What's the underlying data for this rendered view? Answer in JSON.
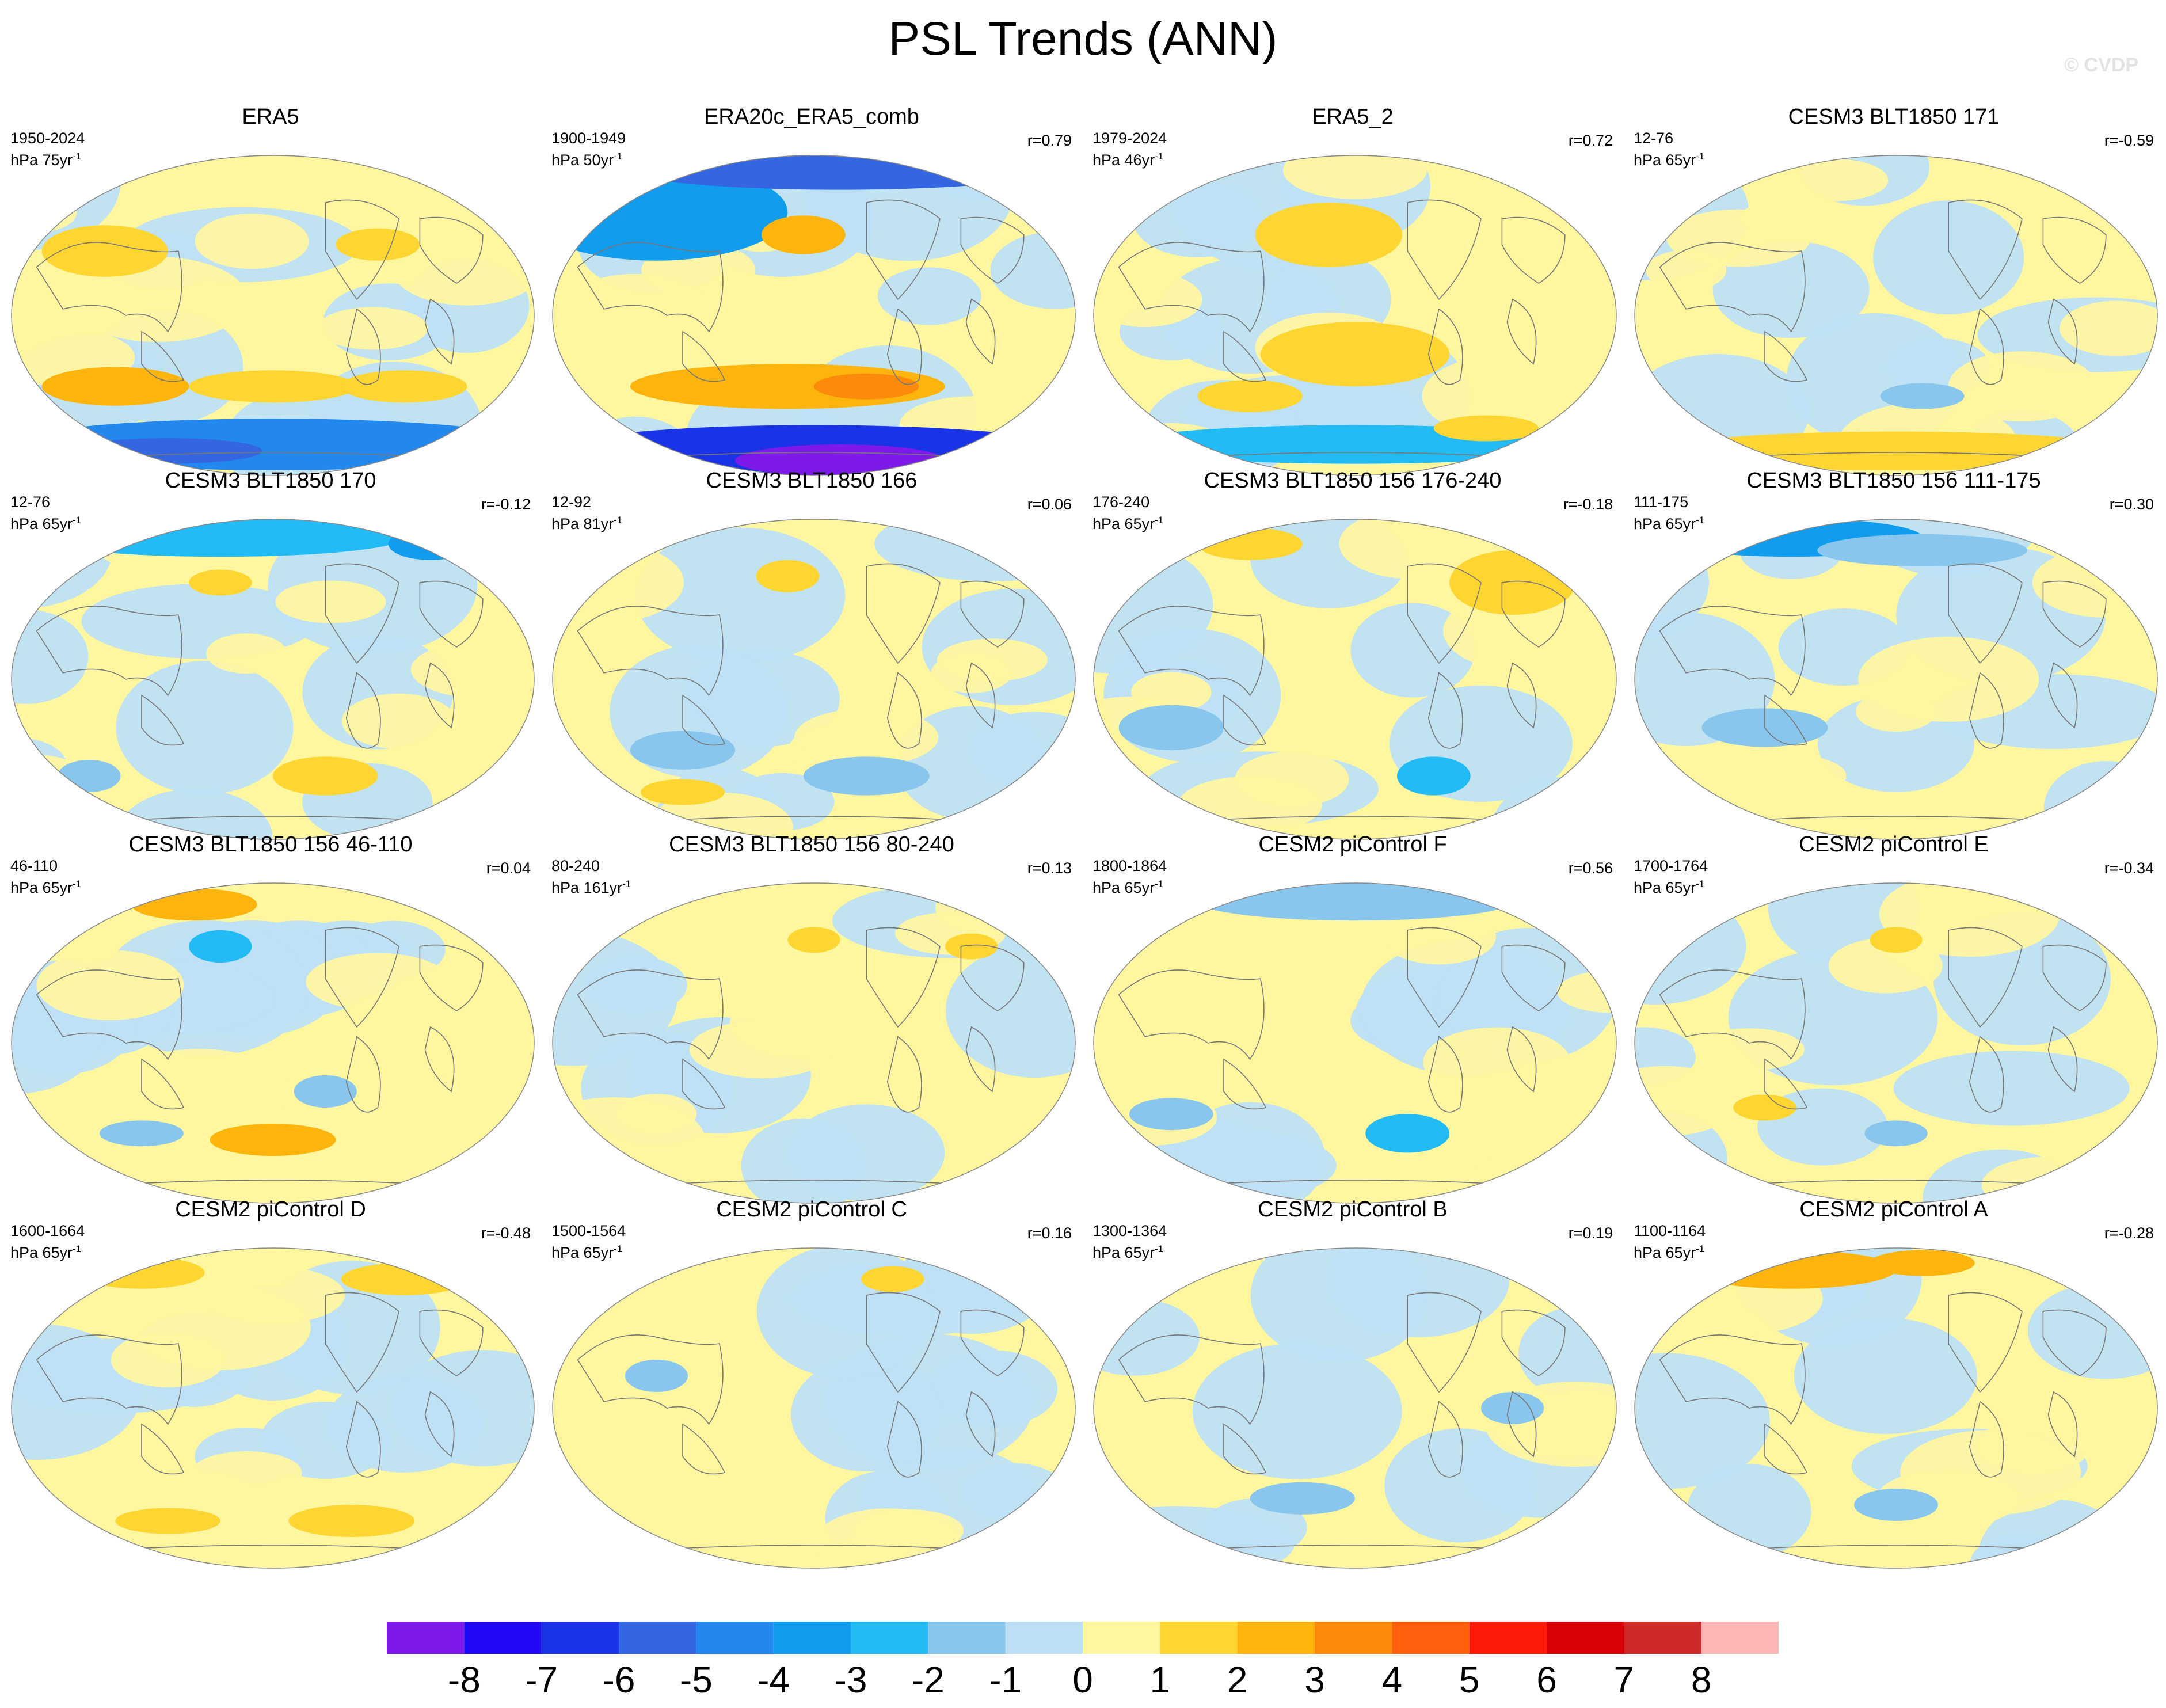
{
  "title": "PSL Trends (ANN)",
  "watermark": "© CVDP",
  "colorbar": {
    "colors": [
      "#7d1ae9",
      "#2209f5",
      "#1a33e6",
      "#3366e0",
      "#2288ee",
      "#119cee",
      "#22bbf5",
      "#88c6ee",
      "#bee0f5",
      "#fff6a0",
      "#fed531",
      "#fdb50d",
      "#fd8a0a",
      "#fd5f0a",
      "#fe1a0a",
      "#d90008",
      "#cf2a2a",
      "#ffb5b5"
    ],
    "labels": [
      "-8",
      "-7",
      "-6",
      "-5",
      "-4",
      "-3",
      "-2",
      "-1",
      "0",
      "1",
      "2",
      "3",
      "4",
      "5",
      "6",
      "7",
      "8"
    ]
  },
  "panels": [
    {
      "title": "ERA5",
      "period": "1950-2024",
      "units": "hPa 75yr",
      "corr": ""
    },
    {
      "title": "ERA20c_ERA5_comb",
      "period": "1900-1949",
      "units": "hPa 50yr",
      "corr": "r=0.79"
    },
    {
      "title": "ERA5_2",
      "period": "1979-2024",
      "units": "hPa 46yr",
      "corr": "r=0.72"
    },
    {
      "title": "CESM3 BLT1850 171",
      "period": "12-76",
      "units": "hPa 65yr",
      "corr": "r=-0.59"
    },
    {
      "title": "CESM3 BLT1850 170",
      "period": "12-76",
      "units": "hPa 65yr",
      "corr": "r=-0.12"
    },
    {
      "title": "CESM3 BLT1850 166",
      "period": "12-92",
      "units": "hPa 81yr",
      "corr": "r=0.06"
    },
    {
      "title": "CESM3 BLT1850 156 176-240",
      "period": "176-240",
      "units": "hPa 65yr",
      "corr": "r=-0.18"
    },
    {
      "title": "CESM3 BLT1850 156 111-175",
      "period": "111-175",
      "units": "hPa 65yr",
      "corr": "r=0.30"
    },
    {
      "title": "CESM3 BLT1850 156 46-110",
      "period": "46-110",
      "units": "hPa 65yr",
      "corr": "r=0.04"
    },
    {
      "title": "CESM3 BLT1850 156 80-240",
      "period": "80-240",
      "units": "hPa 161yr",
      "corr": "r=0.13"
    },
    {
      "title": "CESM2 piControl F",
      "period": "1800-1864",
      "units": "hPa 65yr",
      "corr": "r=0.56"
    },
    {
      "title": "CESM2 piControl E",
      "period": "1700-1764",
      "units": "hPa 65yr",
      "corr": "r=-0.34"
    },
    {
      "title": "CESM2 piControl D",
      "period": "1600-1664",
      "units": "hPa 65yr",
      "corr": "r=-0.48"
    },
    {
      "title": "CESM2 piControl C",
      "period": "1500-1564",
      "units": "hPa 65yr",
      "corr": "r=0.16"
    },
    {
      "title": "CESM2 piControl B",
      "period": "1300-1364",
      "units": "hPa 65yr",
      "corr": "r=0.19"
    },
    {
      "title": "CESM2 piControl A",
      "period": "1100-1164",
      "units": "hPa 65yr",
      "corr": "r=-0.28"
    }
  ]
}
